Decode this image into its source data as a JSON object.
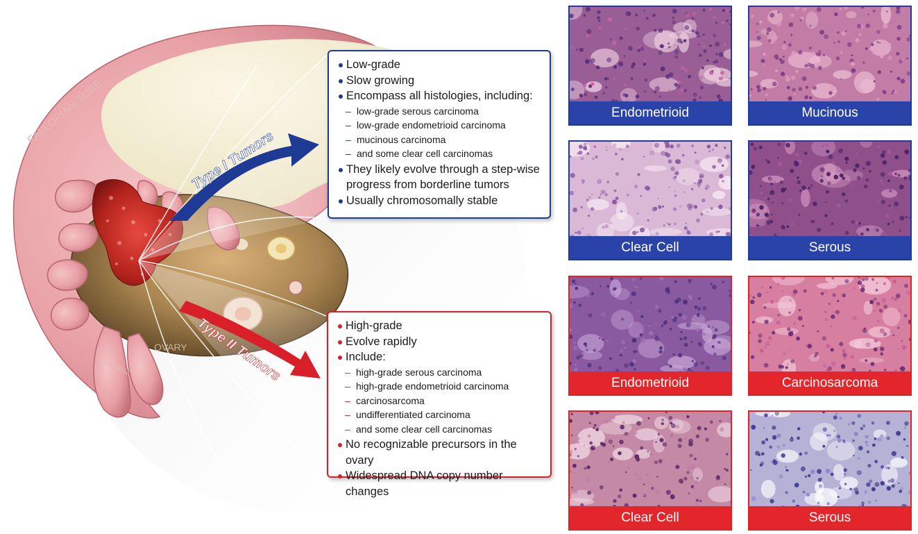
{
  "illustration": {
    "fallopian_tube_label": "FALLOPIAN TUBE",
    "ovary_label": "OVARY",
    "fimbria_label": "FIMBRIA",
    "type1_arrow_label": "Type I Tumors",
    "type2_arrow_label": "Type II Tumors"
  },
  "type1": {
    "bullets": [
      {
        "text": "Low-grade",
        "subs": []
      },
      {
        "text": "Slow growing",
        "subs": []
      },
      {
        "text": "Encompass all histologies, including:",
        "subs": [
          "low-grade serous carcinoma",
          "low-grade endometrioid carcinoma",
          "mucinous carcinoma",
          "and some clear cell carcinomas"
        ]
      },
      {
        "text": "They likely evolve through a step-wise progress from borderline tumors",
        "subs": []
      },
      {
        "text": "Usually chromosomally stable",
        "subs": []
      }
    ]
  },
  "type2": {
    "bullets": [
      {
        "text": "High-grade",
        "subs": []
      },
      {
        "text": "Evolve rapidly",
        "subs": []
      },
      {
        "text": "Include:",
        "subs": [
          "high-grade serous carcinoma",
          "high-grade endometrioid carcinoma",
          "carcinosarcoma",
          "undifferentiated carcinoma",
          "and some clear cell carcinomas"
        ]
      },
      {
        "text": "No recognizable precursors in the ovary",
        "subs": []
      },
      {
        "text": "Widespread DNA copy number changes",
        "subs": []
      }
    ]
  },
  "type1_tiles": [
    "Endometrioid",
    "Mucinous",
    "Clear Cell",
    "Serous"
  ],
  "type2_tiles": [
    "Endometrioid",
    "Carcinosarcoma",
    "Clear Cell",
    "Serous"
  ],
  "colors": {
    "type1_accent": "#1e3a8a",
    "type1_caption": "#2a43a8",
    "type2_accent": "#d9202a",
    "type2_caption": "#e3262b",
    "tissue_pink": "#e8a5ab",
    "ovary_brown": "#8b6a3e"
  }
}
